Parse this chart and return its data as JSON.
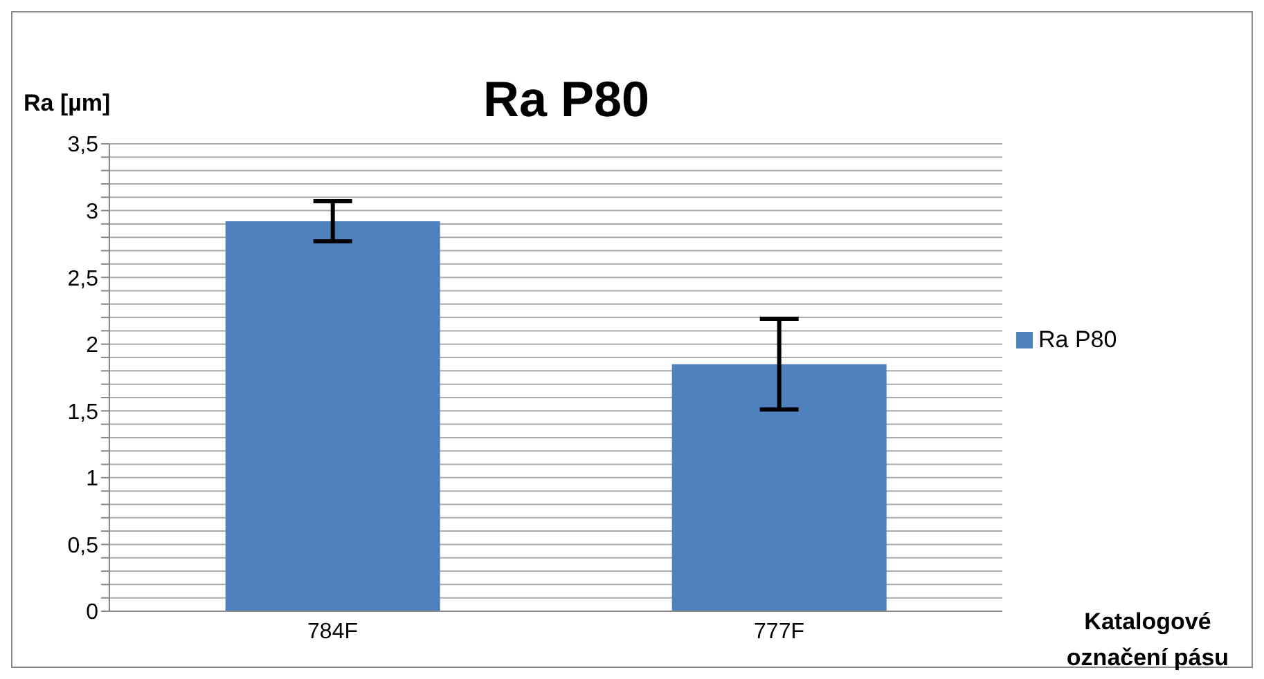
{
  "chart_data": {
    "type": "bar",
    "title": "Ra P80",
    "ylabel": "Ra [µm]",
    "xlabel": "Katalogové označení pásu",
    "categories": [
      "784F",
      "777F"
    ],
    "series": [
      {
        "name": "Ra P80",
        "color": "#4f81bd",
        "values": [
          2.92,
          1.85
        ],
        "errors": [
          0.15,
          0.34
        ]
      }
    ],
    "ylim": [
      0,
      3.5
    ],
    "yticks": [
      0,
      {
        "value": 0.1,
        "label": null
      },
      {
        "value": 0.2,
        "label": null
      },
      {
        "value": 0.3,
        "label": null
      },
      {
        "value": 0.4,
        "label": null
      },
      {
        "value": 0.5,
        "label": "0,5"
      },
      {
        "value": 0.6,
        "label": null
      },
      {
        "value": 0.7,
        "label": null
      },
      {
        "value": 0.8,
        "label": null
      },
      {
        "value": 0.9,
        "label": null
      },
      1,
      {
        "value": 1.1,
        "label": null
      },
      {
        "value": 1.2,
        "label": null
      },
      {
        "value": 1.3,
        "label": null
      },
      {
        "value": 1.4,
        "label": null
      },
      {
        "value": 1.5,
        "label": "1,5"
      },
      {
        "value": 1.6,
        "label": null
      },
      {
        "value": 1.7,
        "label": null
      },
      {
        "value": 1.8,
        "label": null
      },
      {
        "value": 1.9,
        "label": null
      },
      2,
      {
        "value": 2.1,
        "label": null
      },
      {
        "value": 2.2,
        "label": null
      },
      {
        "value": 2.3,
        "label": null
      },
      {
        "value": 2.4,
        "label": null
      },
      {
        "value": 2.5,
        "label": "2,5"
      },
      {
        "value": 2.6,
        "label": null
      },
      {
        "value": 2.7,
        "label": null
      },
      {
        "value": 2.8,
        "label": null
      },
      {
        "value": 2.9,
        "label": null
      },
      3,
      {
        "value": 3.1,
        "label": null
      },
      {
        "value": 3.2,
        "label": null
      },
      {
        "value": 3.3,
        "label": null
      },
      {
        "value": 3.4,
        "label": null
      },
      {
        "value": 3.5,
        "label": "3,5"
      }
    ],
    "grid": "y",
    "legend": "right"
  }
}
